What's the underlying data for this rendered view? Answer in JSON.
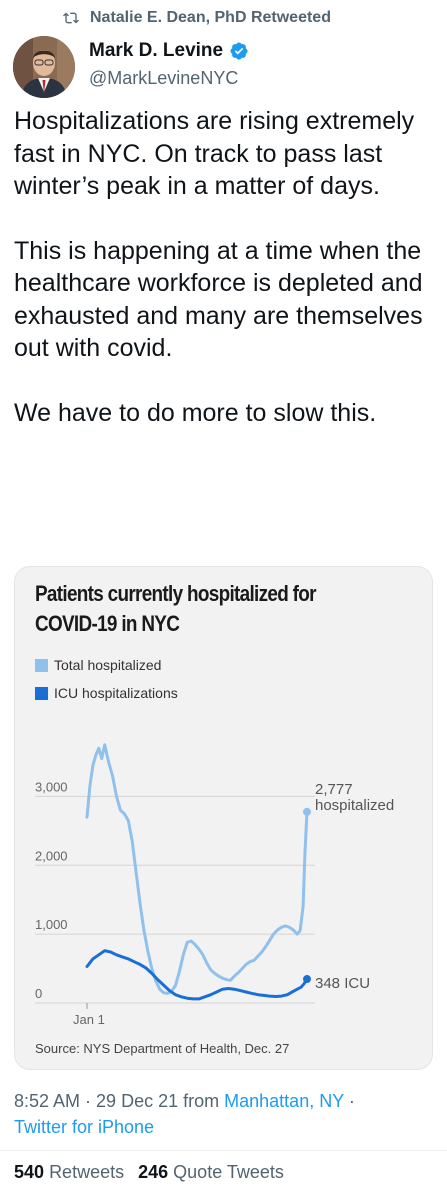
{
  "retweet": {
    "text": "Natalie E. Dean, PhD Retweeted",
    "icon": "retweet-icon"
  },
  "author": {
    "name": "Mark D. Levine",
    "handle": "@MarkLevineNYC",
    "verified": true,
    "verified_color": "#1d9bf0"
  },
  "tweet": {
    "para1": "Hospitalizations are rising extremely fast in NYC. On track to pass last winter’s peak in a matter of days.",
    "para2": "This is happening at a time when the healthcare workforce is depleted and exhausted and many are themselves out with covid.",
    "para3": "We have to do more to slow this."
  },
  "chart_data": {
    "type": "line",
    "title": "Patients currently hospitalized for COVID-19 in NYC",
    "legend": [
      "Total hospitalized",
      "ICU hospitalizations"
    ],
    "colors": {
      "total": "#8fc1ec",
      "icu": "#1a6fd6"
    },
    "y_ticks": [
      "3,000",
      "2,000",
      "1,000",
      "0"
    ],
    "ylim": [
      0,
      3500
    ],
    "x_label": "Jan 1",
    "grid": true,
    "annotations": {
      "total_end_value": "2,777",
      "total_end_label": "hospitalized",
      "icu_end_label": "348 ICU"
    },
    "source": "Source: NYS Department of Health, Dec. 27",
    "series": [
      {
        "name": "Total hospitalized",
        "x": [
          0,
          3,
          6,
          9,
          12,
          15,
          18,
          22,
          26,
          30,
          34,
          38,
          42,
          46,
          50,
          54,
          58,
          62,
          66,
          70,
          74,
          78,
          82,
          86,
          90,
          94,
          98,
          102,
          106,
          110,
          114,
          118,
          122,
          126,
          130,
          134,
          138,
          142,
          146,
          150,
          154,
          158,
          162,
          166,
          170,
          174,
          178,
          182,
          186,
          190,
          194,
          198,
          202,
          206,
          210,
          214,
          217,
          220,
          222,
          224
        ],
        "y": [
          2700,
          3150,
          3450,
          3600,
          3700,
          3550,
          3750,
          3500,
          3300,
          3000,
          2800,
          2750,
          2650,
          2350,
          1900,
          1450,
          1050,
          750,
          500,
          320,
          200,
          150,
          140,
          170,
          250,
          450,
          700,
          880,
          900,
          850,
          780,
          700,
          580,
          480,
          430,
          390,
          360,
          340,
          330,
          390,
          440,
          500,
          560,
          600,
          620,
          680,
          740,
          820,
          910,
          1000,
          1060,
          1100,
          1120,
          1100,
          1060,
          1000,
          1050,
          1400,
          2200,
          2777
        ]
      },
      {
        "name": "ICU hospitalizations",
        "x": [
          0,
          6,
          12,
          18,
          24,
          30,
          36,
          42,
          48,
          54,
          60,
          66,
          72,
          78,
          84,
          90,
          96,
          102,
          108,
          114,
          120,
          126,
          132,
          138,
          144,
          150,
          156,
          162,
          168,
          174,
          180,
          186,
          192,
          198,
          204,
          210,
          214,
          218,
          221,
          224
        ],
        "y": [
          530,
          640,
          700,
          760,
          740,
          700,
          670,
          640,
          600,
          560,
          510,
          430,
          340,
          260,
          180,
          120,
          90,
          70,
          60,
          60,
          90,
          120,
          160,
          200,
          210,
          200,
          180,
          160,
          140,
          120,
          110,
          100,
          95,
          100,
          120,
          170,
          200,
          230,
          280,
          348
        ]
      }
    ]
  },
  "meta": {
    "time": "8:52 AM",
    "date": "29 Dec 21",
    "from_text": "from",
    "location": "Manhattan, NY",
    "client": "Twitter for iPhone"
  },
  "stats": {
    "retweets_count": "540",
    "retweets_label": "Retweets",
    "quotes_count": "246",
    "quotes_label": "Quote Tweets"
  }
}
